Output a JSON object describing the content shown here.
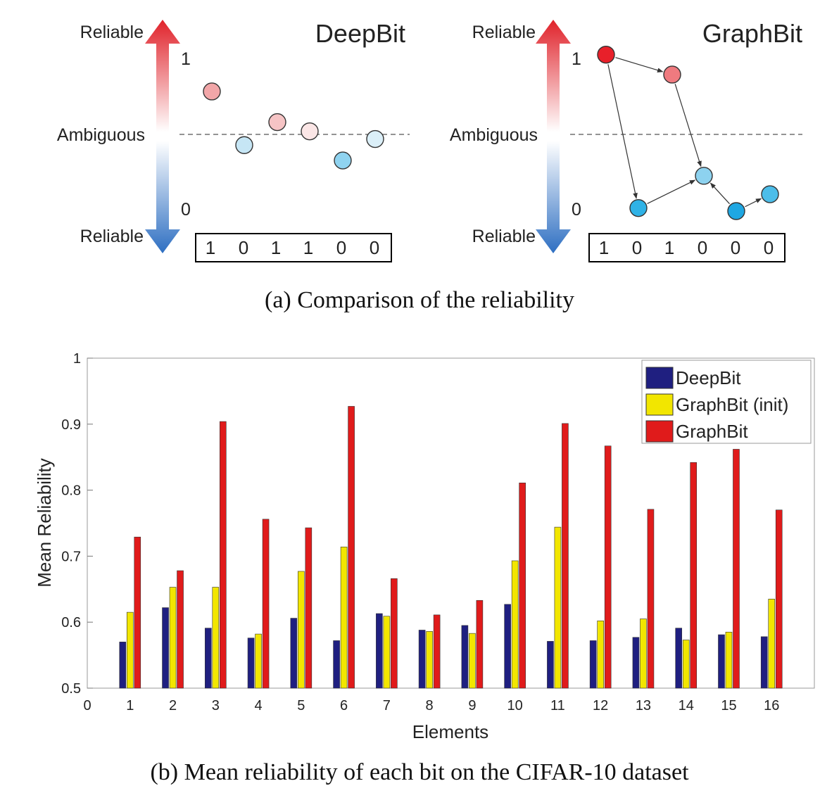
{
  "panel_a": {
    "caption": "(a)  Comparison of the reliability",
    "scale_labels": {
      "top": "Reliable",
      "middle": "Ambiguous",
      "bottom": "Reliable",
      "one": "1",
      "zero": "0"
    },
    "deepbit": {
      "title": "DeepBit",
      "bits": [
        "1",
        "0",
        "1",
        "1",
        "0",
        "0"
      ],
      "nodes": [
        {
          "reliability": 0.78,
          "color": "#f2a6a8"
        },
        {
          "reliability": 0.43,
          "color": "#c6e6f5"
        },
        {
          "reliability": 0.58,
          "color": "#f6c4c5"
        },
        {
          "reliability": 0.52,
          "color": "#fbe6e6"
        },
        {
          "reliability": 0.33,
          "color": "#8fd3f0"
        },
        {
          "reliability": 0.47,
          "color": "#dbeff8"
        }
      ]
    },
    "graphbit": {
      "title": "GraphBit",
      "bits": [
        "1",
        "0",
        "1",
        "0",
        "0",
        "0"
      ],
      "nodes": [
        {
          "reliability": 1.02,
          "color": "#e8202a"
        },
        {
          "reliability": 0.89,
          "color": "#ef7a7f"
        },
        {
          "reliability": 0.02,
          "color": "#2fb2e6"
        },
        {
          "reliability": 0.23,
          "color": "#8dd2ef"
        },
        {
          "reliability": 0.0,
          "color": "#1fa7e2"
        },
        {
          "reliability": 0.11,
          "color": "#4cbde9"
        }
      ],
      "edges": [
        [
          0,
          1
        ],
        [
          0,
          2
        ],
        [
          1,
          3
        ],
        [
          2,
          3
        ],
        [
          4,
          3
        ],
        [
          4,
          5
        ]
      ]
    }
  },
  "panel_b": {
    "caption": "(b)  Mean reliability of each bit on the CIFAR-10 dataset"
  },
  "chart_data": {
    "type": "bar",
    "title": "",
    "xlabel": "Elements",
    "ylabel": "Mean Reliability",
    "categories": [
      "1",
      "2",
      "3",
      "4",
      "5",
      "6",
      "7",
      "8",
      "9",
      "10",
      "11",
      "12",
      "13",
      "14",
      "15",
      "16"
    ],
    "x_origin_label": "0",
    "ylim": [
      0.5,
      1
    ],
    "yticks": [
      "0.5",
      "0.6",
      "0.7",
      "0.8",
      "0.9",
      "1"
    ],
    "legend_position": "top-right",
    "series": [
      {
        "name": "DeepBit",
        "color": "#1f1f80",
        "values": [
          0.57,
          0.622,
          0.591,
          0.576,
          0.606,
          0.572,
          0.613,
          0.588,
          0.595,
          0.627,
          0.571,
          0.572,
          0.577,
          0.591,
          0.581,
          0.578
        ]
      },
      {
        "name": "GraphBit (init)",
        "color": "#f2e600",
        "values": [
          0.615,
          0.653,
          0.653,
          0.582,
          0.677,
          0.714,
          0.609,
          0.586,
          0.583,
          0.693,
          0.744,
          0.602,
          0.605,
          0.573,
          0.585,
          0.635
        ]
      },
      {
        "name": "GraphBit",
        "color": "#e01b1b",
        "values": [
          0.729,
          0.678,
          0.904,
          0.756,
          0.743,
          0.927,
          0.666,
          0.611,
          0.633,
          0.811,
          0.901,
          0.867,
          0.771,
          0.842,
          0.862,
          0.77
        ]
      }
    ]
  }
}
